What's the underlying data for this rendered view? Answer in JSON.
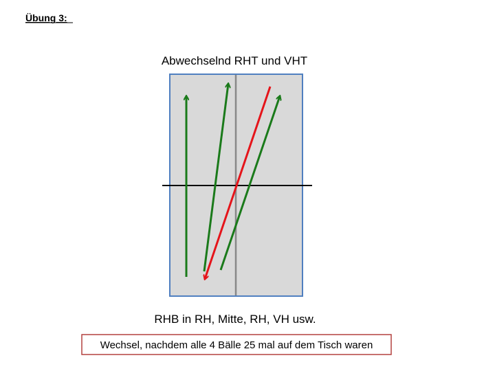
{
  "header": {
    "title": "Übung 3:"
  },
  "diagram": {
    "title": "Abwechselnd RHT und VHT",
    "caption": "RHB in RH, Mitte, RH, VH usw."
  },
  "note": {
    "text": "Wechsel, nachdem alle 4 Bälle 25 mal auf dem Tisch waren"
  }
}
